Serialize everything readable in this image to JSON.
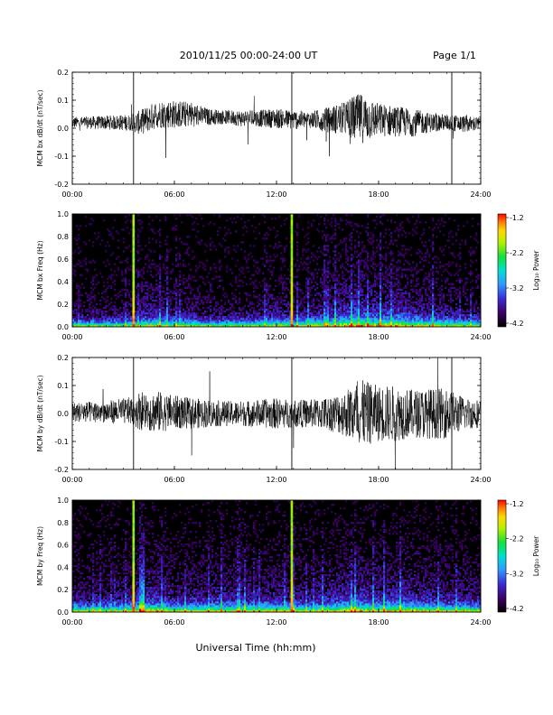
{
  "header": {
    "title": "2010/11/25  00:00-24:00 UT",
    "page": "Page 1/1"
  },
  "footer": {
    "xlabel": "Universal Time (hh:mm)"
  },
  "colorbar": {
    "label": "Log₁₀ Power",
    "ticks": [
      "-1.2",
      "-2.2",
      "-3.2",
      "-4.2"
    ],
    "range": [
      -4.2,
      -1.2
    ]
  },
  "chart_data": [
    {
      "type": "line",
      "ylabel": "MCM bx dB/dt (nT/sec)",
      "xlim": [
        0,
        24
      ],
      "ylim": [
        -0.2,
        0.2
      ],
      "xticks": [
        "00:00",
        "06:00",
        "12:00",
        "18:00",
        "24:00"
      ],
      "yticks": [
        "0.2",
        "0.1",
        "0.0",
        "-0.1",
        "-0.2"
      ],
      "markers_hours": [
        3.6,
        12.9,
        22.3
      ],
      "envelope": {
        "hours": [
          0,
          2,
          3.5,
          4,
          5,
          6,
          7,
          8,
          9,
          10,
          11,
          12,
          13,
          14,
          15,
          16,
          16.5,
          17,
          18,
          19,
          20,
          21,
          22,
          23,
          24
        ],
        "amplitude": [
          0.02,
          0.025,
          0.03,
          0.045,
          0.05,
          0.05,
          0.045,
          0.03,
          0.025,
          0.03,
          0.03,
          0.035,
          0.035,
          0.03,
          0.045,
          0.06,
          0.08,
          0.09,
          0.06,
          0.055,
          0.05,
          0.035,
          0.03,
          0.03,
          0.025
        ],
        "offset": [
          0.02,
          0.02,
          0.02,
          0.02,
          0.05,
          0.05,
          0.05,
          0.04,
          0.04,
          0.035,
          0.035,
          0.035,
          0.03,
          0.03,
          0.03,
          0.035,
          0.035,
          0.035,
          0.03,
          0.025,
          0.02,
          0.02,
          0.02,
          0.015,
          0.015
        ]
      }
    },
    {
      "type": "heatmap",
      "ylabel": "MCM bx Freq (Hz)",
      "xlim": [
        0,
        24
      ],
      "ylim": [
        0,
        1.0
      ],
      "xticks": [
        "00:00",
        "06:00",
        "12:00",
        "18:00",
        "24:00"
      ],
      "yticks": [
        "1.0",
        "0.8",
        "0.6",
        "0.4",
        "0.2",
        "0.0"
      ],
      "markers_hours": [
        3.6,
        12.9
      ],
      "power_range": [
        -4.2,
        -1.2
      ],
      "activity_hours": [
        0,
        2,
        3.5,
        4,
        5,
        6,
        7,
        8,
        9,
        10,
        11,
        12,
        13,
        14,
        15,
        16,
        16.5,
        17,
        18,
        19,
        20,
        21,
        22,
        23,
        24
      ],
      "activity": [
        0.25,
        0.2,
        0.3,
        0.45,
        0.5,
        0.35,
        0.35,
        0.2,
        0.2,
        0.25,
        0.3,
        0.45,
        0.35,
        0.45,
        0.55,
        0.7,
        0.8,
        0.75,
        0.65,
        0.75,
        0.55,
        0.5,
        0.4,
        0.35,
        0.3
      ]
    },
    {
      "type": "line",
      "ylabel": "MCM by dB/dt (nT/sec)",
      "xlim": [
        0,
        24
      ],
      "ylim": [
        -0.2,
        0.2
      ],
      "xticks": [
        "00:00",
        "06:00",
        "12:00",
        "18:00",
        "24:00"
      ],
      "yticks": [
        "0.2",
        "0.1",
        "0.0",
        "-0.1",
        "-0.2"
      ],
      "markers_hours": [
        3.6,
        12.9,
        22.3
      ],
      "envelope": {
        "hours": [
          0,
          2,
          3.5,
          4,
          5,
          6,
          7,
          8,
          9,
          10,
          11,
          12,
          13,
          14,
          15,
          16,
          16.5,
          17,
          18,
          19,
          20,
          21,
          22,
          23,
          24
        ],
        "amplitude": [
          0.035,
          0.04,
          0.05,
          0.07,
          0.075,
          0.06,
          0.055,
          0.05,
          0.045,
          0.045,
          0.05,
          0.055,
          0.05,
          0.05,
          0.06,
          0.08,
          0.11,
          0.12,
          0.1,
          0.1,
          0.085,
          0.09,
          0.09,
          0.06,
          0.05
        ],
        "offset": [
          0.005,
          0.005,
          0.01,
          0.01,
          0.005,
          0.005,
          0.0,
          0.0,
          0.0,
          0.0,
          0.0,
          0.0,
          0.0,
          0.0,
          0.0,
          0.0,
          0.0,
          0.0,
          0.0,
          0.0,
          0.0,
          0.0,
          0.0,
          0.0,
          0.0
        ]
      }
    },
    {
      "type": "heatmap",
      "ylabel": "MCM by Freq (Hz)",
      "xlim": [
        0,
        24
      ],
      "ylim": [
        0,
        1.0
      ],
      "xticks": [
        "00:00",
        "06:00",
        "12:00",
        "18:00",
        "24:00"
      ],
      "yticks": [
        "1.0",
        "0.8",
        "0.6",
        "0.4",
        "0.2",
        "0.0"
      ],
      "markers_hours": [
        3.6,
        12.9
      ],
      "power_range": [
        -4.2,
        -1.2
      ],
      "activity_hours": [
        0,
        2,
        3.5,
        4,
        5,
        6,
        7,
        8,
        9,
        10,
        11,
        12,
        13,
        14,
        15,
        16,
        16.5,
        17,
        18,
        19,
        20,
        21,
        22,
        23,
        24
      ],
      "activity": [
        0.4,
        0.4,
        0.45,
        0.65,
        0.65,
        0.45,
        0.5,
        0.55,
        0.55,
        0.5,
        0.5,
        0.55,
        0.45,
        0.45,
        0.55,
        0.7,
        0.75,
        0.7,
        0.6,
        0.7,
        0.6,
        0.55,
        0.5,
        0.45,
        0.45
      ]
    }
  ]
}
